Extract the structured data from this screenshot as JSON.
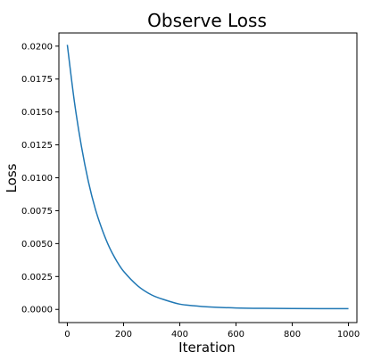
{
  "chart_data": {
    "type": "line",
    "title": "Observe Loss",
    "xlabel": "Iteration",
    "ylabel": "Loss",
    "xlim": [
      -30,
      1030
    ],
    "ylim": [
      -0.001,
      0.021
    ],
    "xticks": [
      0,
      200,
      400,
      600,
      800,
      1000
    ],
    "xtick_labels": [
      "0",
      "200",
      "400",
      "600",
      "800",
      "1000"
    ],
    "yticks": [
      0.0,
      0.0025,
      0.005,
      0.0075,
      0.01,
      0.0125,
      0.015,
      0.0175,
      0.02
    ],
    "ytick_labels": [
      "0.0000",
      "0.0025",
      "0.0050",
      "0.0075",
      "0.0100",
      "0.0125",
      "0.0150",
      "0.0175",
      "0.0200"
    ],
    "grid": false,
    "line_color": "#1f77b4",
    "series": [
      {
        "x": [
          0,
          25,
          50,
          75,
          100,
          125,
          150,
          175,
          200,
          250,
          300,
          350,
          400,
          450,
          500,
          600,
          700,
          800,
          900,
          1000
        ],
        "values": [
          0.0201,
          0.0158,
          0.0124,
          0.0097,
          0.0076,
          0.006,
          0.0047,
          0.0037,
          0.0029,
          0.0018,
          0.0011,
          0.0007,
          0.0004,
          0.00028,
          0.00019,
          0.00011,
          8e-05,
          7e-05,
          6e-05,
          6e-05
        ]
      }
    ]
  }
}
